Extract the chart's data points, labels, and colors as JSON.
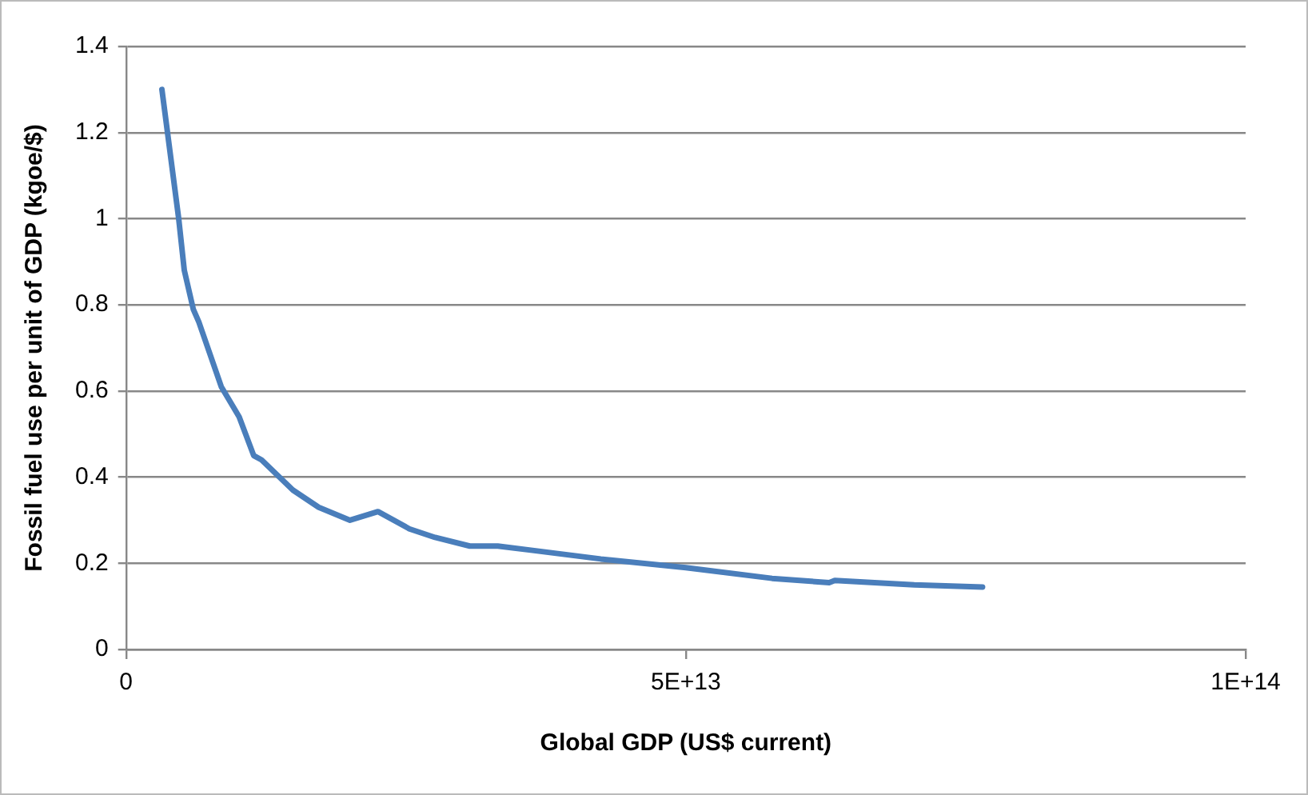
{
  "chart_data": {
    "type": "line",
    "xlabel": "Global GDP (US$ current)",
    "ylabel": "Fossil fuel use per unit of GDP (kgoe/$)",
    "series": [
      {
        "color": "#4a7ebb",
        "x": [
          3200000000000.0,
          3700000000000.0,
          4700000000000.0,
          5200000000000.0,
          6000000000000.0,
          6500000000000.0,
          8500000000000.0,
          10100000000000.0,
          11400000000000.0,
          12100000000000.0,
          14900000000000.0,
          17200000000000.0,
          20000000000000.0,
          22500000000000.0,
          25300000000000.0,
          27600000000000.0,
          30700000000000.0,
          30900000000000.0,
          33200000000000.0,
          36300000000000.0,
          42400000000000.0,
          50000000000000.0,
          57700000000000.0,
          62800000000000.0,
          63300000000000.0,
          70400000000000.0,
          76500000000000.0
        ],
        "values": [
          1.3,
          1.2,
          1.0,
          0.88,
          0.79,
          0.76,
          0.61,
          0.54,
          0.45,
          0.44,
          0.37,
          0.33,
          0.3,
          0.32,
          0.28,
          0.26,
          0.24,
          0.24,
          0.24,
          0.23,
          0.21,
          0.19,
          0.165,
          0.155,
          0.16,
          0.15,
          0.145
        ]
      }
    ],
    "xlim": [
      0,
      100000000000000.0
    ],
    "xticks": [
      0,
      {
        "value": 50000000000000.0,
        "label": "5E+13"
      },
      {
        "value": 100000000000000.0,
        "label": "1E+14"
      }
    ],
    "ylim": [
      0,
      1.4
    ],
    "yticks": [
      0,
      0.2,
      0.4,
      0.6,
      0.8,
      1,
      1.2,
      1.4
    ],
    "grid": "y",
    "legend": false,
    "marker": "none",
    "line_style": "solid"
  }
}
